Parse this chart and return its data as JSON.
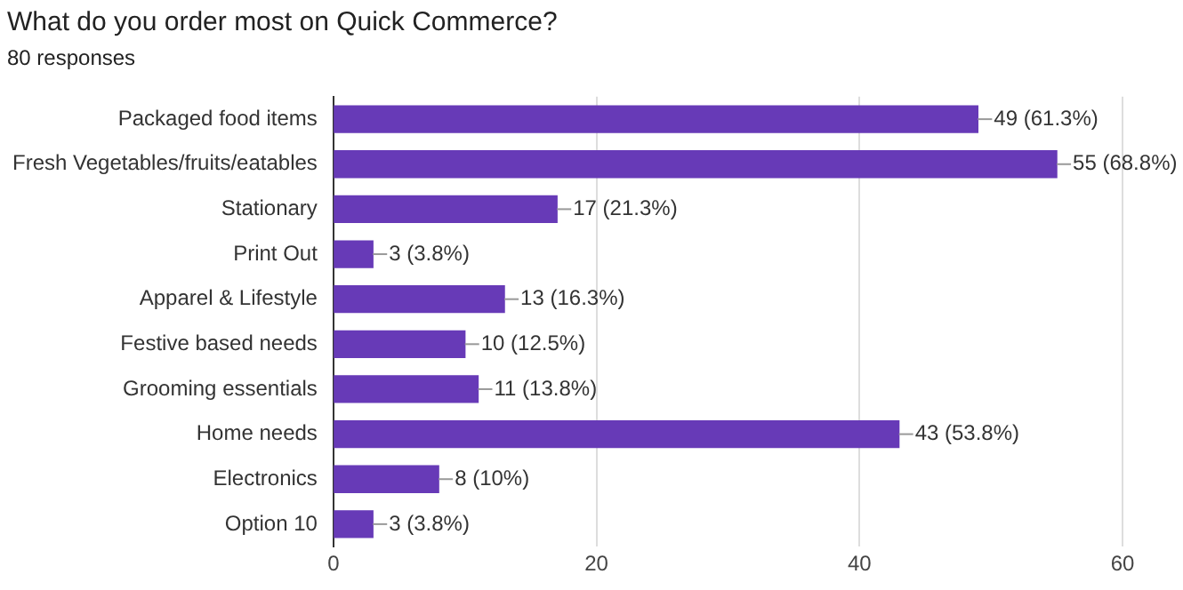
{
  "chart_data": {
    "type": "bar",
    "orientation": "horizontal",
    "title": "What do you order most on Quick Commerce?",
    "subtitle": "80 responses",
    "categories": [
      "Packaged food items",
      "Fresh Vegetables/fruits/eatables",
      "Stationary",
      "Print Out",
      "Apparel & Lifestyle",
      "Festive based needs",
      "Grooming essentials",
      "Home needs",
      "Electronics",
      "Option 10"
    ],
    "values": [
      49,
      55,
      17,
      3,
      13,
      10,
      11,
      43,
      8,
      3
    ],
    "value_labels": [
      "49 (61.3%)",
      "55 (68.8%)",
      "17 (21.3%)",
      "3 (3.8%)",
      "13 (16.3%)",
      "10 (12.5%)",
      "11 (13.8%)",
      "43 (53.8%)",
      "8 (10%)",
      "3 (3.8%)"
    ],
    "color": "#673ab7",
    "xlim": [
      0,
      60
    ],
    "xticks": [
      0,
      20,
      40,
      60
    ],
    "grid": "x"
  }
}
